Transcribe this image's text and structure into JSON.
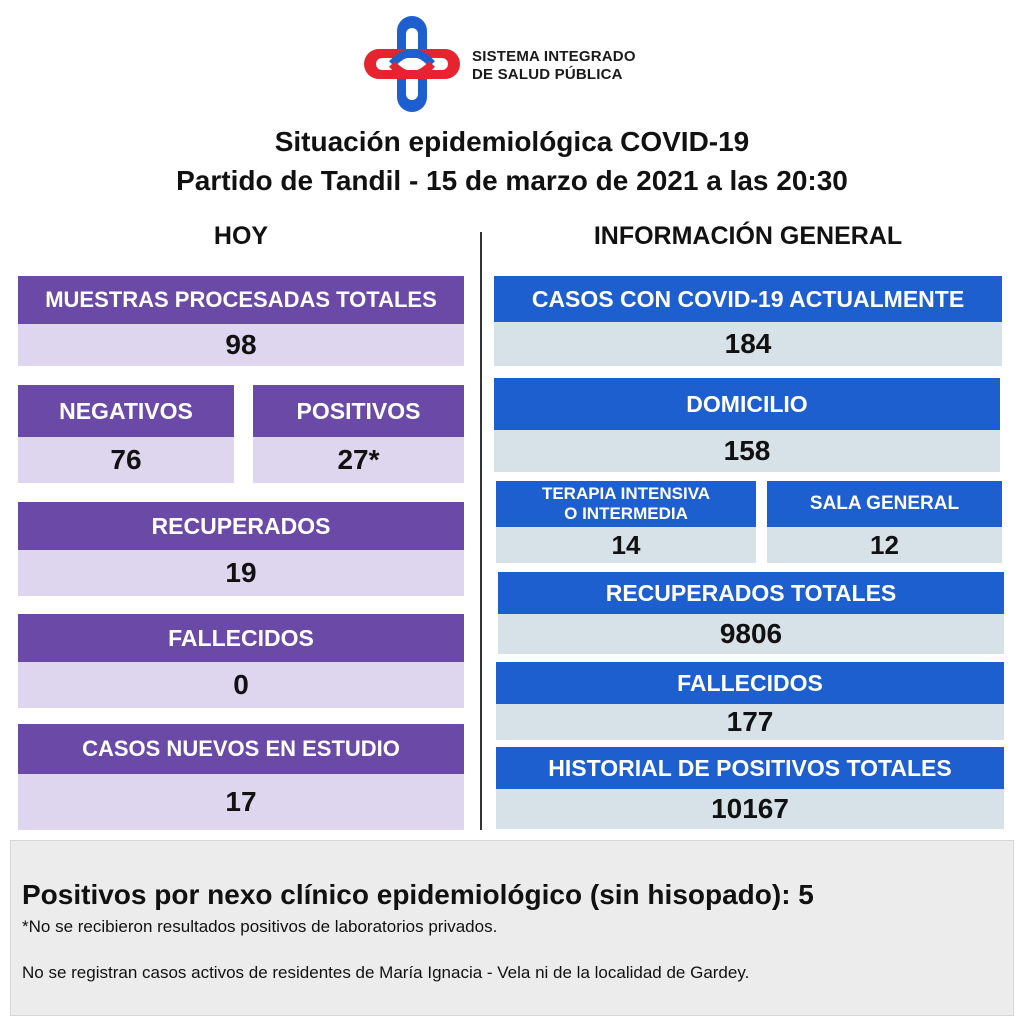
{
  "header": {
    "org_line1": "SISTEMA INTEGRADO",
    "org_line2": "DE SALUD PÚBLICA",
    "title_line1": "Situación epidemiológica COVID-19",
    "title_line2": "Partido de Tandil - 15 de marzo de 2021 a las 20:30"
  },
  "colors": {
    "logo_red": "#e6232e",
    "logo_blue": "#1e5fd0",
    "purple": "#6a4aa6",
    "blue": "#1e5fd0"
  },
  "hoy": {
    "heading": "HOY",
    "muestras_label": "MUESTRAS PROCESADAS TOTALES",
    "muestras_value": "98",
    "negativos_label": "NEGATIVOS",
    "negativos_value": "76",
    "positivos_label": "POSITIVOS",
    "positivos_value": "27*",
    "recuperados_label": "RECUPERADOS",
    "recuperados_value": "19",
    "fallecidos_label": "FALLECIDOS",
    "fallecidos_value": "0",
    "nuevos_label": "CASOS NUEVOS EN ESTUDIO",
    "nuevos_value": "17"
  },
  "general": {
    "heading": "INFORMACIÓN GENERAL",
    "actuales_label": "CASOS CON COVID-19 ACTUALMENTE",
    "actuales_value": "184",
    "domicilio_label": "DOMICILIO",
    "domicilio_value": "158",
    "terapia_label_line1": "TERAPIA INTENSIVA",
    "terapia_label_line2": "O INTERMEDIA",
    "terapia_value": "14",
    "sala_label": "SALA GENERAL",
    "sala_value": "12",
    "recuperados_label": "RECUPERADOS TOTALES",
    "recuperados_value": "9806",
    "fallecidos_label": "FALLECIDOS",
    "fallecidos_value": "177",
    "historial_label": "HISTORIAL DE POSITIVOS TOTALES",
    "historial_value": "10167"
  },
  "footer": {
    "nexo": "Positivos por nexo clínico epidemiológico (sin hisopado): 5",
    "nota": "*No se recibieron resultados positivos de laboratorios privados.",
    "residentes": "No se registran casos activos de residentes de María Ignacia - Vela ni de la localidad de Gardey."
  }
}
